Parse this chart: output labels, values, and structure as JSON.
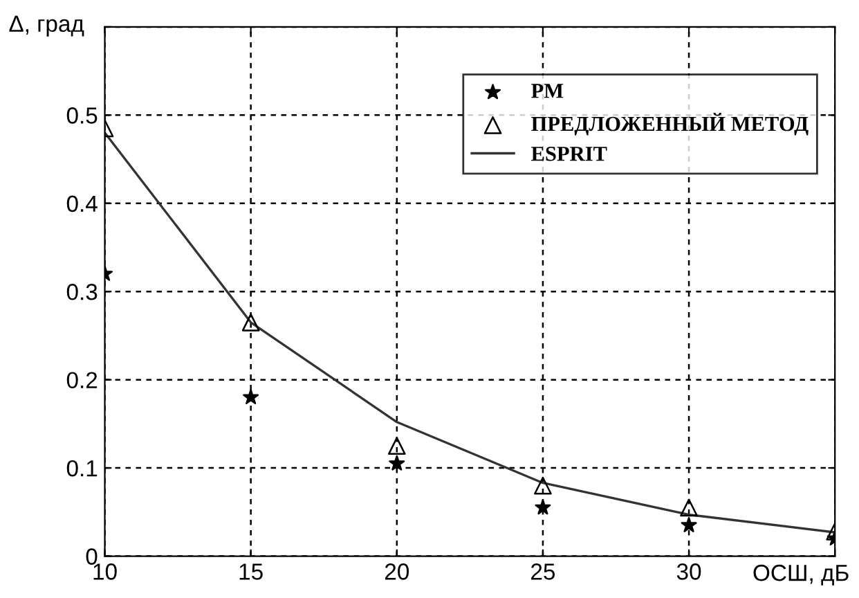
{
  "chart_data": {
    "type": "line",
    "xlabel": "ОСШ, дБ",
    "ylabel": "Δ, град",
    "x": [
      10,
      15,
      20,
      25,
      30,
      35
    ],
    "series": [
      {
        "name": "PM",
        "type": "scatter",
        "marker": "star",
        "color": "#000000",
        "values": [
          0.32,
          0.18,
          0.105,
          0.055,
          0.035,
          0.02
        ]
      },
      {
        "name": "ПРЕДЛОЖЕННЫЙ МЕТОД",
        "type": "scatter",
        "marker": "triangle",
        "color": "#000000",
        "values": [
          0.485,
          0.265,
          0.125,
          0.08,
          0.055,
          0.028
        ]
      },
      {
        "name": "ESPRIT",
        "marker": "none",
        "line_style": "solid",
        "color": "#333333",
        "values": [
          0.48,
          0.265,
          0.152,
          0.083,
          0.047,
          0.027
        ]
      }
    ],
    "xlim": [
      10,
      35
    ],
    "xticks": [
      10,
      15,
      20,
      25,
      30,
      {
        "value": 35,
        "label": null
      }
    ],
    "ylim": [
      0,
      0.6
    ],
    "yticks": [
      0,
      0.1,
      0.2,
      0.3,
      0.4,
      0.5,
      {
        "value": 0.6,
        "label": null
      }
    ],
    "grid": true,
    "legend": "top right"
  }
}
